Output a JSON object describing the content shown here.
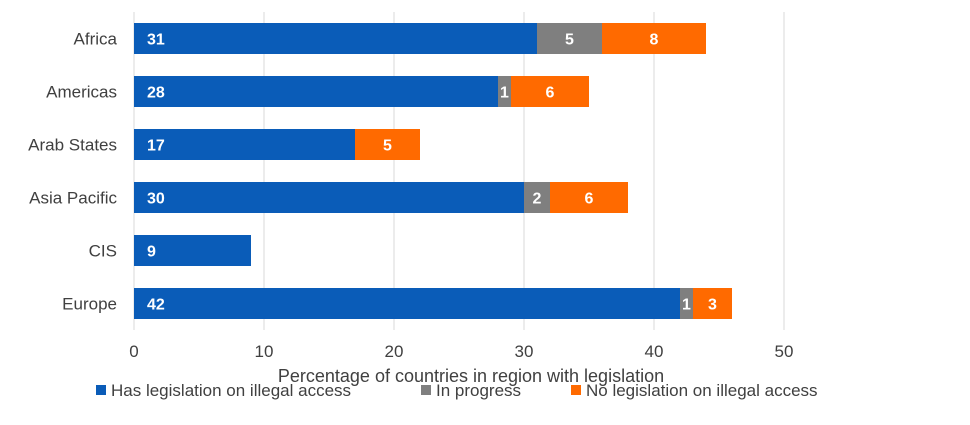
{
  "chart_data": {
    "type": "bar",
    "orientation": "horizontal",
    "stacked": true,
    "categories": [
      "Africa",
      "Americas",
      "Arab States",
      "Asia Pacific",
      "CIS",
      "Europe"
    ],
    "series": [
      {
        "name": "Has legislation on illegal access",
        "color": "#0A5CB8",
        "values": [
          31,
          28,
          17,
          30,
          9,
          42
        ]
      },
      {
        "name": "In progress",
        "color": "#7F7F7F",
        "values": [
          5,
          1,
          0,
          2,
          0,
          1
        ]
      },
      {
        "name": "No legislation on illegal access",
        "color": "#FF6A00",
        "values": [
          8,
          6,
          5,
          6,
          0,
          3
        ]
      }
    ],
    "xlabel": "Percentage of countries in region with legislation",
    "xlim": [
      0,
      50
    ],
    "xticks": [
      0,
      10,
      20,
      30,
      40,
      50
    ],
    "grid": true,
    "legend_position": "bottom"
  }
}
